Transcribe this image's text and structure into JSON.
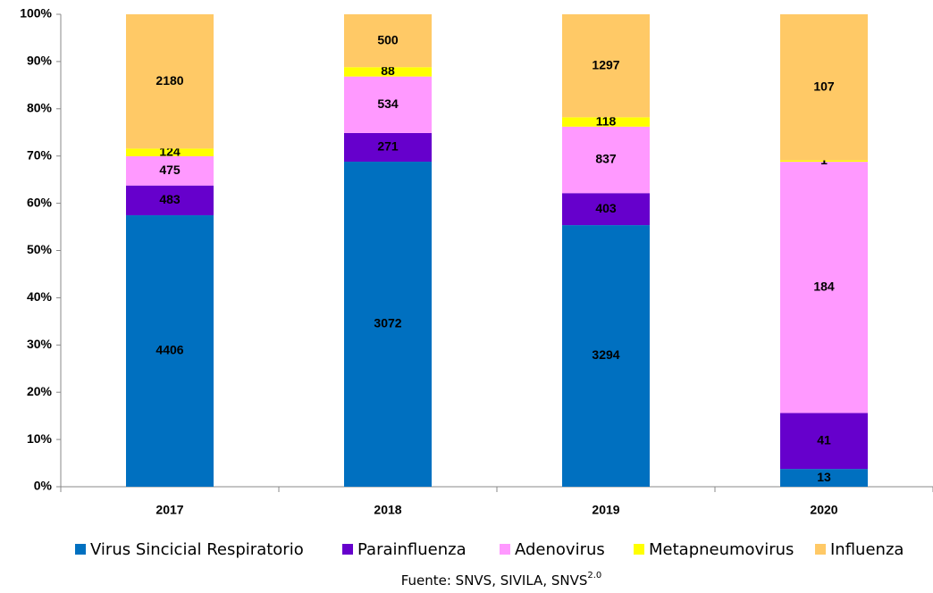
{
  "chart_data": {
    "type": "stacked_percent_bar",
    "categories": [
      "2017",
      "2018",
      "2019",
      "2020"
    ],
    "series": [
      {
        "name": "Virus Sincicial Respiratorio",
        "color": "#0070c0",
        "values": [
          4406,
          3072,
          3294,
          13
        ]
      },
      {
        "name": "Parainfluenza",
        "color": "#6600cc",
        "values": [
          483,
          271,
          403,
          41
        ]
      },
      {
        "name": "Adenovirus",
        "color": "#ff99ff",
        "values": [
          475,
          534,
          837,
          184
        ]
      },
      {
        "name": "Metapneumovirus",
        "color": "#ffff00",
        "values": [
          124,
          88,
          118,
          1
        ]
      },
      {
        "name": "Influenza",
        "color": "#ffc966",
        "values": [
          2180,
          500,
          1297,
          107
        ]
      }
    ],
    "ylim": [
      0,
      100
    ],
    "yticks": [
      {
        "value": 0,
        "label": "0%"
      },
      {
        "value": 10,
        "label": "10%"
      },
      {
        "value": 20,
        "label": "20%"
      },
      {
        "value": 30,
        "label": "30%"
      },
      {
        "value": 40,
        "label": "40%"
      },
      {
        "value": 50,
        "label": "50%"
      },
      {
        "value": 60,
        "label": "60%"
      },
      {
        "value": 70,
        "label": "70%"
      },
      {
        "value": 80,
        "label": "80%"
      },
      {
        "value": 90,
        "label": "90%"
      },
      {
        "value": 100,
        "label": "100%"
      }
    ],
    "legend": "bottom",
    "source": "Fuente: SNVS, SIVILA, SNVS",
    "source_sup": "2.0"
  }
}
